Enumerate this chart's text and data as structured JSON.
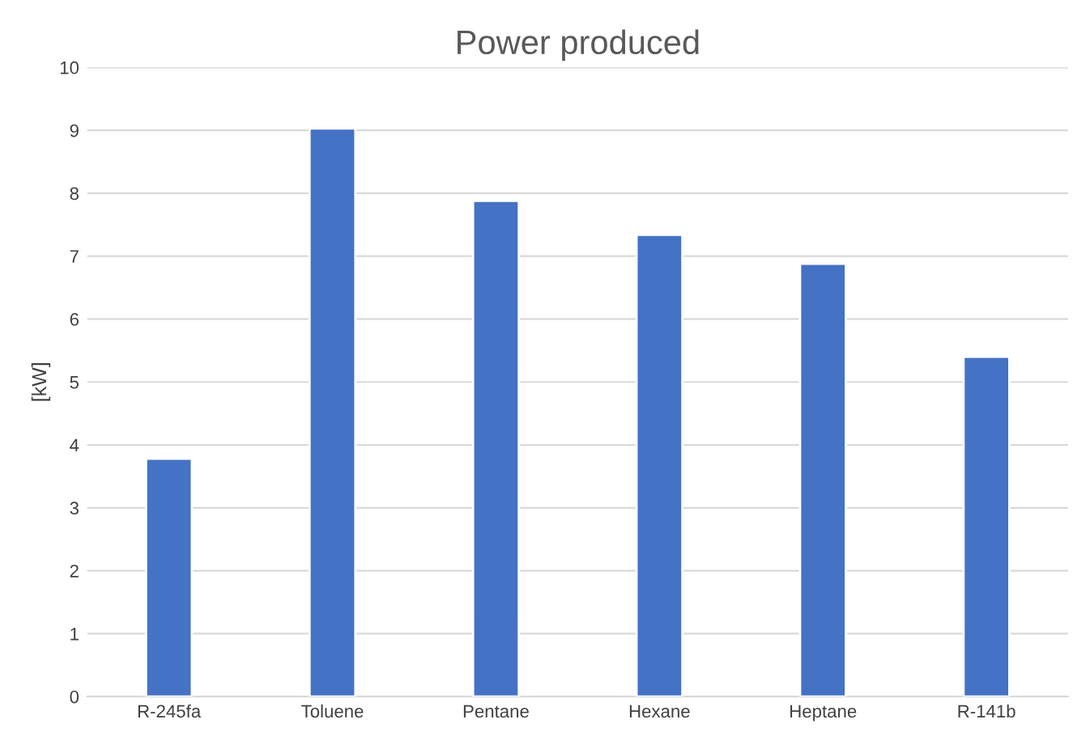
{
  "chart_data": {
    "type": "bar",
    "title": "Power produced",
    "ylabel": "[kW]",
    "categories": [
      "R-245fa",
      "Toluene",
      "Pentane",
      "Hexane",
      "Heptane",
      "R-141b"
    ],
    "values": [
      3.78,
      9.03,
      7.88,
      7.34,
      6.88,
      5.4
    ],
    "color": "#4472c4",
    "ylim": [
      0,
      10
    ],
    "yticks": [
      0,
      1,
      2,
      3,
      4,
      5,
      6,
      7,
      8,
      9,
      10
    ],
    "grid": "y"
  }
}
